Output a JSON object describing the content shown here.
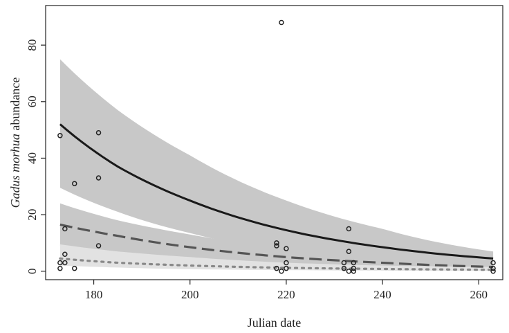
{
  "chart_data": {
    "type": "scatter",
    "xlabel": "Julian date",
    "ylabel_italic": "Gadus morhua",
    "ylabel_rest": " abundance",
    "xlim": [
      170,
      265
    ],
    "ylim": [
      -3,
      94
    ],
    "xticks": [
      180,
      200,
      220,
      240,
      260
    ],
    "yticks": [
      0,
      20,
      40,
      60,
      80
    ],
    "grid": false,
    "legend": "none",
    "points": [
      {
        "x": 173,
        "y": 48
      },
      {
        "x": 173,
        "y": 3
      },
      {
        "x": 173,
        "y": 1
      },
      {
        "x": 174,
        "y": 15
      },
      {
        "x": 174,
        "y": 6
      },
      {
        "x": 174,
        "y": 3
      },
      {
        "x": 176,
        "y": 31
      },
      {
        "x": 176,
        "y": 1
      },
      {
        "x": 181,
        "y": 49
      },
      {
        "x": 181,
        "y": 33
      },
      {
        "x": 181,
        "y": 9
      },
      {
        "x": 218,
        "y": 10
      },
      {
        "x": 218,
        "y": 9
      },
      {
        "x": 218,
        "y": 1
      },
      {
        "x": 219,
        "y": 88
      },
      {
        "x": 219,
        "y": 0
      },
      {
        "x": 220,
        "y": 8
      },
      {
        "x": 220,
        "y": 3
      },
      {
        "x": 220,
        "y": 1
      },
      {
        "x": 232,
        "y": 3
      },
      {
        "x": 232,
        "y": 1
      },
      {
        "x": 233,
        "y": 15
      },
      {
        "x": 233,
        "y": 7
      },
      {
        "x": 233,
        "y": 0
      },
      {
        "x": 234,
        "y": 3
      },
      {
        "x": 234,
        "y": 1
      },
      {
        "x": 234,
        "y": 0
      },
      {
        "x": 263,
        "y": 3
      },
      {
        "x": 263,
        "y": 1
      },
      {
        "x": 263,
        "y": 0
      }
    ],
    "series": [
      {
        "style": "solid",
        "color": "#1a1a1a",
        "band_color": "#c8c8c8",
        "x": [
          173,
          185,
          200,
          220,
          240,
          263
        ],
        "fit": [
          52,
          37,
          25,
          14.5,
          8.5,
          4.5
        ],
        "lower": [
          29.5,
          21,
          13.5,
          7,
          4,
          2
        ],
        "upper": [
          75,
          57,
          41,
          25,
          15,
          7
        ]
      },
      {
        "style": "dashed",
        "color": "#555555",
        "band_color": "#c8c8c8",
        "x": [
          173,
          185,
          200,
          220,
          240,
          263
        ],
        "fit": [
          16.5,
          12.5,
          8.5,
          5,
          3,
          1.5
        ],
        "lower": [
          9,
          6.5,
          4,
          2.5,
          1,
          0.5
        ],
        "upper": [
          24,
          18,
          13,
          8,
          5,
          3
        ]
      },
      {
        "style": "dotted",
        "color": "#888888",
        "band_color": "#e2e2e2",
        "x": [
          173,
          185,
          200,
          220,
          240,
          263
        ],
        "fit": [
          4.5,
          3,
          2,
          1.2,
          0.8,
          0.5
        ],
        "lower": [
          2,
          1.3,
          0.7,
          0.4,
          0.2,
          0.1
        ],
        "upper": [
          9.5,
          7,
          5,
          3,
          2,
          1.5
        ]
      }
    ]
  }
}
